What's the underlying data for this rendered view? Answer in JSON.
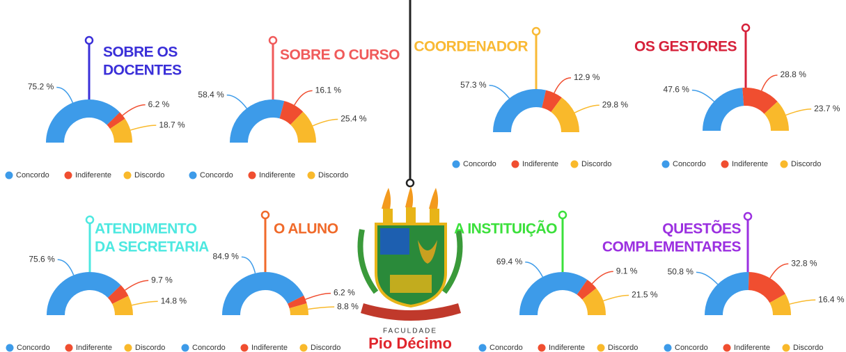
{
  "chart_data": [
    {
      "type": "donut",
      "title": [
        "SOBRE OS",
        "DOCENTES"
      ],
      "color": "#3a2fd8",
      "categories": [
        "Concordo",
        "Indiferente",
        "Discordo"
      ],
      "colors": [
        "#3d9be9",
        "#f04e30",
        "#f9b92b"
      ],
      "values": [
        75.2,
        6.2,
        18.7
      ],
      "value_labels": [
        "75.2 %",
        "6.2 %",
        "18.7 %"
      ]
    },
    {
      "type": "donut",
      "title": [
        "SOBRE O CURSO"
      ],
      "color": "#f05a5a",
      "categories": [
        "Concordo",
        "Indiferente",
        "Discordo"
      ],
      "colors": [
        "#3d9be9",
        "#f04e30",
        "#f9b92b"
      ],
      "values": [
        58.4,
        16.1,
        25.4
      ],
      "value_labels": [
        "58.4 %",
        "16.1 %",
        "25.4 %"
      ]
    },
    {
      "type": "donut",
      "title": [
        "COORDENADOR"
      ],
      "color": "#f9b934",
      "categories": [
        "Concordo",
        "Indiferente",
        "Discordo"
      ],
      "colors": [
        "#3d9be9",
        "#f04e30",
        "#f9b92b"
      ],
      "values": [
        57.3,
        12.9,
        29.8
      ],
      "value_labels": [
        "57.3 %",
        "12.9 %",
        "29.8 %"
      ]
    },
    {
      "type": "donut",
      "title": [
        "OS GESTORES"
      ],
      "color": "#d6213a",
      "categories": [
        "Concordo",
        "Indiferente",
        "Discordo"
      ],
      "colors": [
        "#3d9be9",
        "#f04e30",
        "#f9b92b"
      ],
      "values": [
        47.6,
        28.8,
        23.7
      ],
      "value_labels": [
        "47.6 %",
        "28.8 %",
        "23.7 %"
      ]
    },
    {
      "type": "donut",
      "title": [
        "ATENDIMENTO",
        "DA SECRETARIA"
      ],
      "color": "#4de8e0",
      "categories": [
        "Concordo",
        "Indiferente",
        "Discordo"
      ],
      "colors": [
        "#3d9be9",
        "#f04e30",
        "#f9b92b"
      ],
      "values": [
        75.6,
        9.7,
        14.8
      ],
      "value_labels": [
        "75.6 %",
        "9.7 %",
        "14.8 %"
      ]
    },
    {
      "type": "donut",
      "title": [
        "O ALUNO"
      ],
      "color": "#f06a2a",
      "categories": [
        "Concordo",
        "Indiferente",
        "Discordo"
      ],
      "colors": [
        "#3d9be9",
        "#f04e30",
        "#f9b92b"
      ],
      "values": [
        84.9,
        6.2,
        8.8
      ],
      "value_labels": [
        "84.9 %",
        "6.2 %",
        "8.8 %"
      ]
    },
    {
      "type": "donut",
      "title": [
        "A INSTITUIÇÃO"
      ],
      "color": "#3be03b",
      "categories": [
        "Concordo",
        "Indiferente",
        "Discordo"
      ],
      "colors": [
        "#3d9be9",
        "#f04e30",
        "#f9b92b"
      ],
      "values": [
        69.4,
        9.1,
        21.5
      ],
      "value_labels": [
        "69.4 %",
        "9.1 %",
        "21.5 %"
      ]
    },
    {
      "type": "donut",
      "title": [
        "QUESTÕES",
        "COMPLEMENTARES"
      ],
      "color": "#9b30e0",
      "categories": [
        "Concordo",
        "Indiferente",
        "Discordo"
      ],
      "colors": [
        "#3d9be9",
        "#f04e30",
        "#f9b92b"
      ],
      "values": [
        50.8,
        32.8,
        16.4
      ],
      "value_labels": [
        "50.8 %",
        "32.8 %",
        "16.4 %"
      ]
    }
  ],
  "logo": {
    "caption": "FACULDADE",
    "name": "Pio Décimo"
  }
}
